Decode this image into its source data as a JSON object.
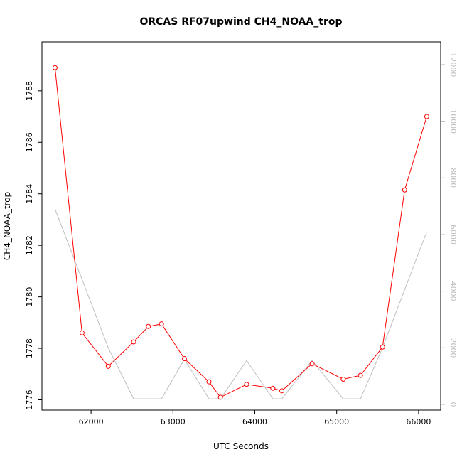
{
  "chart_data": {
    "type": "line",
    "title": "ORCAS RF07upwind CH4_NOAA_trop",
    "xlabel": "UTC Seconds",
    "ylabel": "CH4_NOAA_trop",
    "xlim": [
      61400,
      66270
    ],
    "ylim": [
      1775.6,
      1789.9
    ],
    "y2lim": [
      -200,
      12800
    ],
    "x_ticks": [
      62000,
      63000,
      64000,
      65000,
      66000
    ],
    "y_ticks": [
      1776,
      1778,
      1780,
      1782,
      1784,
      1786,
      1788
    ],
    "y2_ticks": [
      0,
      2000,
      4000,
      6000,
      8000,
      10000,
      12000
    ],
    "grid": false,
    "series": [
      {
        "axis": "left",
        "color": "#ff0000",
        "markers": "open-circle",
        "x": [
          61560,
          61890,
          62210,
          62520,
          62700,
          62860,
          63140,
          63440,
          63580,
          63900,
          64220,
          64330,
          64700,
          65080,
          65290,
          65560,
          65830,
          66100
        ],
        "y": [
          1788.9,
          1778.6,
          1777.3,
          1778.25,
          1778.85,
          1778.95,
          1777.6,
          1776.7,
          1776.1,
          1776.6,
          1776.45,
          1776.35,
          1777.4,
          1776.8,
          1776.95,
          1778.05,
          1784.15,
          1787.0
        ]
      },
      {
        "axis": "right",
        "color": "#bebebe",
        "markers": "none",
        "x": [
          61560,
          62210,
          62520,
          62860,
          63140,
          63440,
          63580,
          63900,
          64220,
          64330,
          64700,
          65080,
          65290,
          65560,
          66100
        ],
        "y": [
          6900,
          2000,
          200,
          200,
          1600,
          200,
          200,
          1550,
          200,
          200,
          1550,
          200,
          200,
          2000,
          6100
        ]
      }
    ]
  }
}
